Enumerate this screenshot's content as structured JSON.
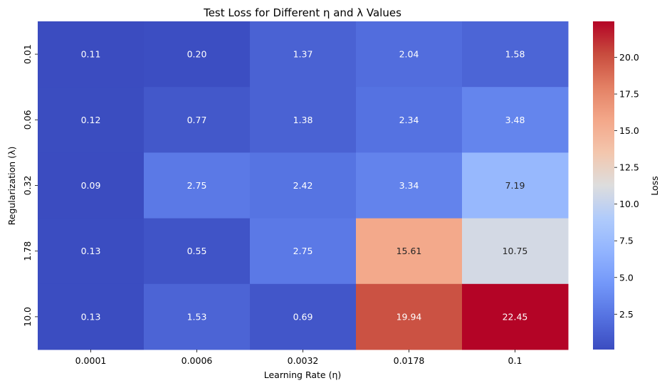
{
  "chart_data": {
    "type": "heatmap",
    "title": "Test Loss for Different η and λ Values",
    "xlabel": "Learning Rate (η)",
    "ylabel": "Regularization (λ)",
    "x_categories": [
      "0.0001",
      "0.0006",
      "0.0032",
      "0.0178",
      "0.1"
    ],
    "y_categories": [
      "0.01",
      "0.06",
      "0.32",
      "1.78",
      "10.0"
    ],
    "values": [
      [
        0.11,
        0.2,
        1.37,
        2.04,
        1.58
      ],
      [
        0.12,
        0.77,
        1.38,
        2.34,
        3.48
      ],
      [
        0.09,
        2.75,
        2.42,
        3.34,
        7.19
      ],
      [
        0.13,
        0.55,
        2.75,
        15.61,
        10.75
      ],
      [
        0.13,
        1.53,
        0.69,
        19.94,
        22.45
      ]
    ],
    "value_labels": [
      [
        "0.11",
        "0.20",
        "1.37",
        "2.04",
        "1.58"
      ],
      [
        "0.12",
        "0.77",
        "1.38",
        "2.34",
        "3.48"
      ],
      [
        "0.09",
        "2.75",
        "2.42",
        "3.34",
        "7.19"
      ],
      [
        "0.13",
        "0.55",
        "2.75",
        "15.61",
        "10.75"
      ],
      [
        "0.13",
        "1.53",
        "0.69",
        "19.94",
        "22.45"
      ]
    ],
    "colormap": "coolwarm",
    "colorbar": {
      "label": "Loss",
      "range": [
        0.09,
        22.45
      ],
      "ticks": [
        2.5,
        5.0,
        7.5,
        10.0,
        12.5,
        15.0,
        17.5,
        20.0
      ],
      "tick_labels": [
        "2.5",
        "5.0",
        "7.5",
        "10.0",
        "12.5",
        "15.0",
        "17.5",
        "20.0"
      ]
    },
    "annotation_color": "#ffffff",
    "annotation_color_light_cells": "#262626"
  }
}
